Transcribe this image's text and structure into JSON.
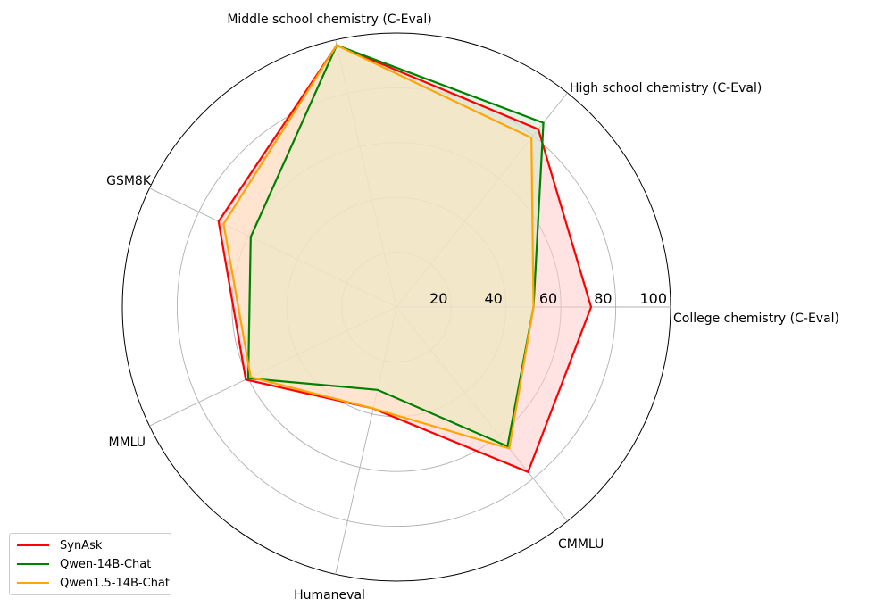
{
  "chart_data": {
    "type": "radar",
    "title": "",
    "axes": [
      "College chemistry (C-Eval)",
      "High school chemistry (C-Eval)",
      "Middle school chemistry (C-Eval)",
      "GSM8K",
      "MMLU",
      "Humaneval",
      "CMMLU"
    ],
    "rticks": [
      20,
      40,
      60,
      80,
      100
    ],
    "rlim": [
      0,
      100
    ],
    "grid": true,
    "legend_position": "lower-left",
    "series": [
      {
        "name": "SynAsk",
        "color": "#ff0000",
        "fill": "#ffcccc",
        "values": [
          71,
          83,
          98,
          72,
          61,
          38,
          77
        ]
      },
      {
        "name": "Qwen-14B-Chat",
        "color": "#008000",
        "fill": "#cceacc",
        "values": [
          50,
          86,
          98,
          59,
          60,
          31,
          65
        ]
      },
      {
        "name": "Qwen1.5-14B-Chat",
        "color": "#ffa500",
        "fill": "#ffe8bf",
        "values": [
          50,
          79,
          98,
          70,
          59,
          38,
          66
        ]
      }
    ]
  }
}
